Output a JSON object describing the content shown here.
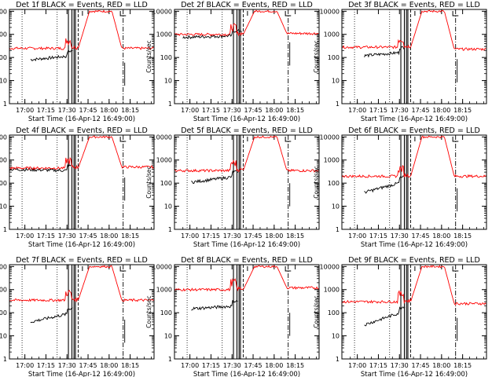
{
  "colors": {
    "events": "#000000",
    "lld": "#ff0000",
    "frame": "#000000",
    "background": "#ffffff"
  },
  "shared": {
    "xlabel": "Start Time (16-Apr-12 16:49:00)",
    "ylabel": "Counts/sec",
    "x_ticks": [
      "17:00",
      "17:15",
      "17:30",
      "17:45",
      "18:00",
      "18:15"
    ],
    "y_ticks": [
      "1",
      "10",
      "100",
      "1000",
      "10000"
    ]
  },
  "chart_data": [
    {
      "type": "line",
      "title": "Det 1f BLACK = Events, RED = LLD",
      "xlim": [
        "16:49",
        "18:32"
      ],
      "ylim": [
        1,
        12000
      ],
      "y_scale": "log",
      "series": [
        {
          "name": "Events",
          "color": "#000000",
          "start": "17:04",
          "end": "17:34",
          "level": 80,
          "end_level": 120
        },
        {
          "name": "LLD",
          "color": "#ff0000",
          "start": "16:49",
          "end": "18:32",
          "level": 250,
          "plateau": 10000,
          "tail": 250
        }
      ]
    },
    {
      "type": "line",
      "title": "Det 2f BLACK = Events, RED = LLD",
      "xlim": [
        "16:49",
        "18:32"
      ],
      "ylim": [
        1,
        12000
      ],
      "y_scale": "log",
      "series": [
        {
          "name": "Events",
          "color": "#000000",
          "start": "16:55",
          "end": "17:37",
          "level": 750,
          "end_level": 900
        },
        {
          "name": "LLD",
          "color": "#ff0000",
          "start": "16:49",
          "end": "18:32",
          "level": 1000,
          "plateau": 10000,
          "tail": 1100
        }
      ]
    },
    {
      "type": "line",
      "title": "Det 3f BLACK = Events, RED = LLD",
      "xlim": [
        "16:49",
        "18:32"
      ],
      "ylim": [
        1,
        12000
      ],
      "y_scale": "log",
      "series": [
        {
          "name": "Events",
          "color": "#000000",
          "start": "17:05",
          "end": "17:34",
          "level": 120,
          "end_level": 170
        },
        {
          "name": "LLD",
          "color": "#ff0000",
          "start": "16:49",
          "end": "18:32",
          "level": 280,
          "plateau": 10000,
          "tail": 230
        }
      ]
    },
    {
      "type": "line",
      "title": "Det 4f BLACK = Events, RED = LLD",
      "xlim": [
        "16:49",
        "18:32"
      ],
      "ylim": [
        1,
        12000
      ],
      "y_scale": "log",
      "series": [
        {
          "name": "Events",
          "color": "#000000",
          "start": "16:49",
          "end": "17:33",
          "level": 400,
          "end_level": 350
        },
        {
          "name": "LLD",
          "color": "#ff0000",
          "start": "16:49",
          "end": "18:32",
          "level": 450,
          "plateau": 10000,
          "tail": 500
        }
      ]
    },
    {
      "type": "line",
      "title": "Det 5f BLACK = Events, RED = LLD",
      "xlim": [
        "16:49",
        "18:32"
      ],
      "ylim": [
        1,
        12000
      ],
      "y_scale": "log",
      "series": [
        {
          "name": "Events",
          "color": "#000000",
          "start": "17:01",
          "end": "17:34",
          "level": 110,
          "end_level": 200
        },
        {
          "name": "LLD",
          "color": "#ff0000",
          "start": "16:49",
          "end": "18:32",
          "level": 350,
          "plateau": 10000,
          "tail": 350
        }
      ]
    },
    {
      "type": "line",
      "title": "Det 6f BLACK = Events, RED = LLD",
      "xlim": [
        "16:49",
        "18:32"
      ],
      "ylim": [
        1,
        12000
      ],
      "y_scale": "log",
      "series": [
        {
          "name": "Events",
          "color": "#000000",
          "start": "17:05",
          "end": "17:34",
          "level": 40,
          "end_level": 120
        },
        {
          "name": "LLD",
          "color": "#ff0000",
          "start": "16:49",
          "end": "18:32",
          "level": 200,
          "plateau": 10000,
          "tail": 200
        }
      ]
    },
    {
      "type": "line",
      "title": "Det 7f BLACK = Events, RED = LLD",
      "xlim": [
        "16:49",
        "18:32"
      ],
      "ylim": [
        1,
        12000
      ],
      "y_scale": "log",
      "series": [
        {
          "name": "Events",
          "color": "#000000",
          "start": "17:04",
          "end": "17:34",
          "level": 40,
          "end_level": 100
        },
        {
          "name": "LLD",
          "color": "#ff0000",
          "start": "16:49",
          "end": "18:32",
          "level": 350,
          "plateau": 10000,
          "tail": 350
        }
      ]
    },
    {
      "type": "line",
      "title": "Det 8f BLACK = Events, RED = LLD",
      "xlim": [
        "16:49",
        "18:32"
      ],
      "ylim": [
        1,
        12000
      ],
      "y_scale": "log",
      "series": [
        {
          "name": "Events",
          "color": "#000000",
          "start": "17:01",
          "end": "17:34",
          "level": 150,
          "end_level": 200
        },
        {
          "name": "LLD",
          "color": "#ff0000",
          "start": "16:49",
          "end": "18:32",
          "level": 1000,
          "plateau": 10000,
          "tail": 1200
        }
      ]
    },
    {
      "type": "line",
      "title": "Det 9f BLACK = Events, RED = LLD",
      "xlim": [
        "16:49",
        "18:32"
      ],
      "ylim": [
        1,
        12000
      ],
      "y_scale": "log",
      "series": [
        {
          "name": "Events",
          "color": "#000000",
          "start": "17:05",
          "end": "17:34",
          "level": 30,
          "end_level": 120
        },
        {
          "name": "LLD",
          "color": "#ff0000",
          "start": "16:49",
          "end": "18:32",
          "level": 300,
          "plateau": 10000,
          "tail": 250
        }
      ]
    }
  ]
}
